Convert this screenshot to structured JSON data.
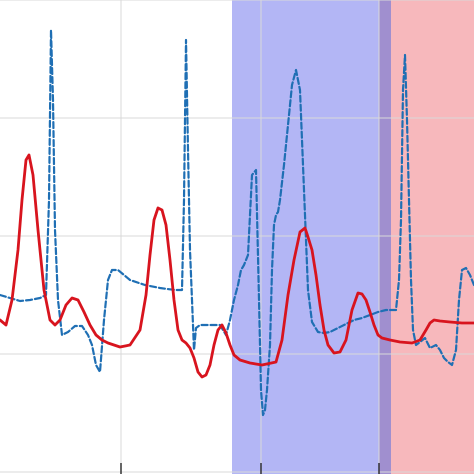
{
  "chart_data": {
    "type": "line",
    "title": "",
    "xlabel": "",
    "ylabel": "",
    "xlim": [
      0,
      474
    ],
    "ylim": [
      -474,
      0
    ],
    "grid": true,
    "regions": [
      {
        "x_start": 232,
        "x_end": 385,
        "color": "#b3b6f5"
      },
      {
        "x_start": 379,
        "x_end": 474,
        "color": "#f7b8bc"
      },
      {
        "x_start": 379,
        "x_end": 391,
        "color": "#a08fcf"
      }
    ],
    "series": [
      {
        "style": "dashed",
        "color": "#1f6fb4",
        "x": [
          0,
          10,
          20,
          30,
          40,
          46,
          49,
          51,
          53,
          55,
          58,
          62,
          68,
          75,
          82,
          88,
          92,
          96,
          100,
          104,
          108,
          112,
          118,
          130,
          145,
          160,
          175,
          182,
          184,
          186,
          188,
          190,
          192,
          194,
          196,
          200,
          206,
          212,
          220,
          226,
          230,
          234,
          238,
          241,
          244,
          248,
          252,
          256,
          259,
          261,
          263,
          265,
          267,
          270,
          272,
          274,
          276,
          278,
          280,
          284,
          288,
          292,
          296,
          300,
          304,
          308,
          312,
          318,
          324,
          330,
          338,
          346,
          354,
          362,
          370,
          378,
          386,
          392,
          396,
          399,
          401,
          403,
          405,
          407,
          409,
          411,
          413,
          416,
          420,
          425,
          430,
          436,
          440,
          444,
          448,
          452,
          456,
          459,
          462,
          466,
          470,
          474
        ],
        "y": [
          -295,
          -298,
          -301,
          -300,
          -298,
          -295,
          -200,
          -30,
          -100,
          -230,
          -300,
          -335,
          -332,
          -326,
          -326,
          -335,
          -345,
          -365,
          -372,
          -320,
          -280,
          -270,
          -270,
          -280,
          -285,
          -288,
          -290,
          -290,
          -200,
          -40,
          -150,
          -250,
          -300,
          -350,
          -328,
          -325,
          -325,
          -325,
          -325,
          -335,
          -320,
          -300,
          -285,
          -270,
          -265,
          -255,
          -175,
          -170,
          -300,
          -390,
          -415,
          -410,
          -390,
          -345,
          -270,
          -225,
          -215,
          -212,
          -200,
          -165,
          -125,
          -85,
          -70,
          -90,
          -190,
          -290,
          -322,
          -332,
          -333,
          -332,
          -328,
          -324,
          -320,
          -318,
          -315,
          -312,
          -310,
          -310,
          -310,
          -280,
          -220,
          -90,
          -55,
          -120,
          -200,
          -280,
          -330,
          -345,
          -342,
          -338,
          -348,
          -345,
          -350,
          -358,
          -362,
          -365,
          -350,
          -300,
          -270,
          -268,
          -275,
          -285
        ]
      },
      {
        "style": "solid",
        "color": "#d8141e",
        "x": [
          0,
          6,
          12,
          18,
          22,
          26,
          29,
          33,
          38,
          44,
          50,
          55,
          60,
          66,
          72,
          78,
          84,
          90,
          96,
          102,
          108,
          114,
          120,
          130,
          140,
          146,
          150,
          154,
          158,
          162,
          166,
          170,
          174,
          178,
          182,
          186,
          190,
          194,
          198,
          202,
          206,
          210,
          214,
          218,
          222,
          226,
          230,
          234,
          240,
          250,
          262,
          276,
          282,
          288,
          294,
          300,
          305,
          308,
          312,
          316,
          320,
          324,
          328,
          334,
          340,
          346,
          352,
          358,
          362,
          366,
          370,
          374,
          378,
          382,
          390,
          400,
          412,
          420,
          426,
          430,
          434,
          440,
          450,
          462,
          474
        ],
        "y": [
          -320,
          -325,
          -300,
          -250,
          -200,
          -160,
          -155,
          -175,
          -230,
          -290,
          -320,
          -325,
          -320,
          -305,
          -298,
          -300,
          -312,
          -325,
          -335,
          -340,
          -343,
          -345,
          -347,
          -345,
          -330,
          -295,
          -255,
          -220,
          -208,
          -210,
          -225,
          -260,
          -300,
          -330,
          -340,
          -343,
          -348,
          -358,
          -372,
          -377,
          -375,
          -365,
          -345,
          -330,
          -325,
          -333,
          -345,
          -355,
          -360,
          -363,
          -365,
          -362,
          -340,
          -295,
          -260,
          -232,
          -228,
          -237,
          -250,
          -275,
          -305,
          -330,
          -345,
          -353,
          -352,
          -340,
          -310,
          -293,
          -294,
          -300,
          -312,
          -325,
          -335,
          -338,
          -340,
          -342,
          -343,
          -340,
          -330,
          -323,
          -320,
          -321,
          -322,
          -323,
          -323
        ]
      }
    ]
  }
}
